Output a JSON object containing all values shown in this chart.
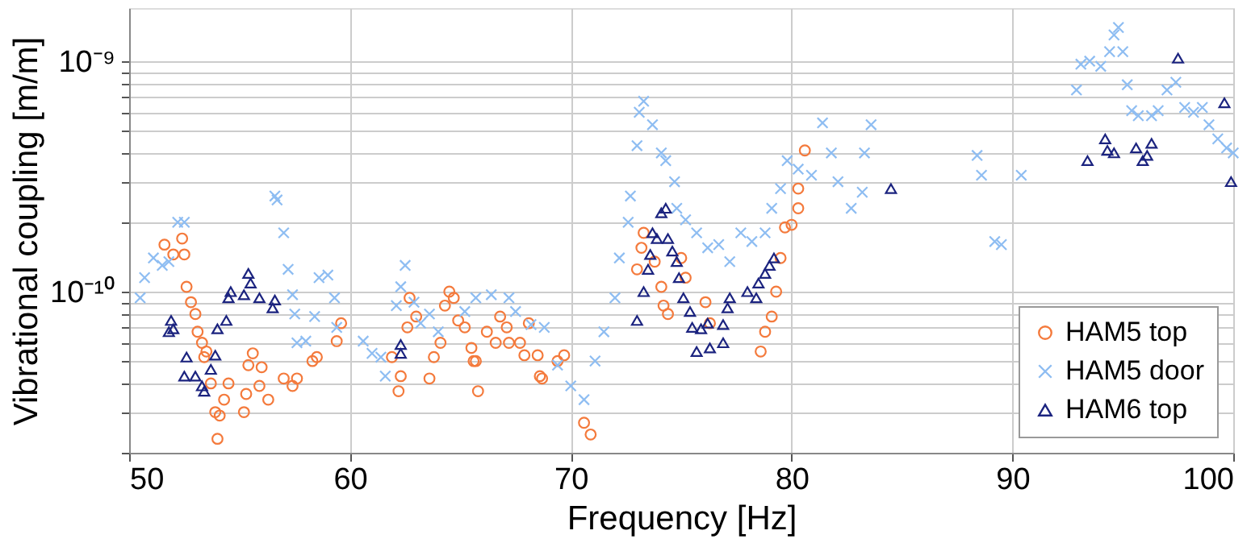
{
  "chart_data": {
    "type": "scatter",
    "xlabel": "Frequency [Hz]",
    "ylabel": "Vibrational coupling [m/m]",
    "log": "y",
    "grid": true,
    "legend": "bottom right",
    "xlim": [
      50,
      100
    ],
    "xticks": [
      50,
      60,
      70,
      80,
      90,
      100
    ],
    "ylim": [
      2e-11,
      1.7e-09
    ],
    "yticks": [
      {
        "value": 2e-11,
        "label": null
      },
      {
        "value": 3e-11,
        "label": null
      },
      {
        "value": 4e-11,
        "label": null
      },
      {
        "value": 5e-11,
        "label": null
      },
      {
        "value": 6e-11,
        "label": null
      },
      {
        "value": 7e-11,
        "label": null
      },
      {
        "value": 8e-11,
        "label": null
      },
      {
        "value": 9e-11,
        "label": null
      },
      {
        "value": 1e-10,
        "label": "10⁻¹⁰"
      },
      {
        "value": 2e-10,
        "label": null
      },
      {
        "value": 3e-10,
        "label": null
      },
      {
        "value": 4e-10,
        "label": null
      },
      {
        "value": 5e-10,
        "label": null
      },
      {
        "value": 6e-10,
        "label": null
      },
      {
        "value": 7e-10,
        "label": null
      },
      {
        "value": 8e-10,
        "label": null
      },
      {
        "value": 9e-10,
        "label": null
      },
      {
        "value": 1e-09,
        "label": "10⁻⁹"
      }
    ],
    "series": [
      {
        "name": "HAM5 top",
        "color": "#f47a3c",
        "marker": "circle",
        "x": [
          51.6,
          52.0,
          52.4,
          52.5,
          52.6,
          52.8,
          53.0,
          53.1,
          53.3,
          53.4,
          53.5,
          53.7,
          53.9,
          54.0,
          54.1,
          54.3,
          54.5,
          55.2,
          55.3,
          55.4,
          55.6,
          55.9,
          56.0,
          56.3,
          57.0,
          57.4,
          57.6,
          58.3,
          58.5,
          59.4,
          59.6,
          61.9,
          62.2,
          62.3,
          62.6,
          62.7,
          63.0,
          63.6,
          63.8,
          64.1,
          64.3,
          64.5,
          64.7,
          64.9,
          65.2,
          65.5,
          65.6,
          65.7,
          65.8,
          66.2,
          66.6,
          66.8,
          67.1,
          67.2,
          67.7,
          67.9,
          68.1,
          68.5,
          68.6,
          68.7,
          69.4,
          69.7,
          70.6,
          70.9,
          73.0,
          73.2,
          73.3,
          73.8,
          74.1,
          74.2,
          74.4,
          75.0,
          75.2,
          76.1,
          76.3,
          78.6,
          78.8,
          79.1,
          79.3,
          79.5,
          79.7,
          80.0,
          80.3,
          80.3,
          80.6
        ],
        "values": [
          1.6e-10,
          1.45e-10,
          1.7e-10,
          1.45e-10,
          1.05e-10,
          9e-11,
          8e-11,
          6.7e-11,
          6e-11,
          5.2e-11,
          5.5e-11,
          4e-11,
          3e-11,
          2.3e-11,
          2.9e-11,
          3.4e-11,
          4e-11,
          3e-11,
          3.6e-11,
          4.8e-11,
          5.4e-11,
          3.9e-11,
          4.7e-11,
          3.4e-11,
          4.2e-11,
          3.9e-11,
          4.2e-11,
          5e-11,
          5.2e-11,
          6.1e-11,
          7.3e-11,
          5.2e-11,
          3.7e-11,
          4.3e-11,
          7e-11,
          9.4e-11,
          7.8e-11,
          4.2e-11,
          5.2e-11,
          6e-11,
          8.7e-11,
          1e-10,
          9.4e-11,
          7.5e-11,
          7e-11,
          5.7e-11,
          5e-11,
          5e-11,
          3.7e-11,
          6.7e-11,
          6e-11,
          7.8e-11,
          7e-11,
          6e-11,
          6e-11,
          5.3e-11,
          7.3e-11,
          5.3e-11,
          4.3e-11,
          4.2e-11,
          5e-11,
          5.3e-11,
          2.7e-11,
          2.4e-11,
          1.25e-10,
          1.55e-10,
          1.8e-10,
          1.35e-10,
          1.05e-10,
          8.7e-11,
          8e-11,
          1.4e-10,
          1.15e-10,
          9e-11,
          7.3e-11,
          5.5e-11,
          6.7e-11,
          7.8e-11,
          1e-10,
          1.4e-10,
          1.9e-10,
          1.95e-10,
          2.3e-10,
          2.8e-10,
          4.1e-10
        ]
      },
      {
        "name": "HAM5 door",
        "color": "#8ebdf2",
        "marker": "cross",
        "x": [
          50.5,
          50.7,
          51.1,
          51.5,
          51.8,
          52.2,
          52.5,
          56.6,
          56.7,
          57.0,
          57.2,
          57.4,
          57.5,
          57.6,
          58.0,
          58.4,
          58.6,
          59.0,
          59.3,
          59.4,
          60.6,
          61.0,
          61.4,
          61.6,
          62.1,
          62.3,
          62.5,
          62.9,
          63.2,
          63.6,
          64.0,
          65.2,
          65.7,
          66.4,
          67.2,
          67.5,
          68.2,
          68.8,
          69.4,
          70.0,
          70.6,
          71.1,
          71.5,
          72.0,
          72.2,
          72.6,
          72.7,
          73.0,
          73.1,
          73.3,
          73.7,
          74.1,
          74.3,
          74.7,
          74.8,
          75.2,
          75.7,
          76.2,
          76.7,
          77.2,
          77.7,
          78.2,
          78.8,
          79.1,
          79.5,
          79.8,
          80.3,
          80.9,
          81.4,
          81.8,
          82.1,
          82.7,
          83.2,
          83.3,
          83.6,
          88.4,
          88.6,
          89.2,
          89.5,
          90.4,
          92.9,
          93.1,
          93.5,
          94.0,
          94.4,
          94.6,
          94.8,
          95.0,
          95.2,
          95.4,
          95.7,
          96.3,
          96.6,
          97.0,
          97.4,
          97.8,
          98.2,
          98.6,
          98.9,
          99.3,
          99.7,
          100.0
        ],
        "values": [
          9.4e-11,
          1.15e-10,
          1.4e-10,
          1.3e-10,
          1.35e-10,
          2e-10,
          2e-10,
          2.6e-10,
          2.5e-10,
          1.8e-10,
          1.25e-10,
          9.7e-11,
          8e-11,
          6e-11,
          6.1e-11,
          7.8e-11,
          1.15e-10,
          1.18e-10,
          9.4e-11,
          7e-11,
          6.1e-11,
          5.4e-11,
          5.2e-11,
          4.3e-11,
          8.7e-11,
          1.05e-10,
          1.3e-10,
          9e-11,
          7.3e-11,
          8e-11,
          6.7e-11,
          8.2e-11,
          9.4e-11,
          9.7e-11,
          9.4e-11,
          8.2e-11,
          7.2e-11,
          7e-11,
          4.8e-11,
          3.9e-11,
          3.4e-11,
          5e-11,
          6.7e-11,
          9.4e-11,
          1.4e-10,
          2e-10,
          2.6e-10,
          4.3e-10,
          6e-10,
          6.7e-10,
          5.3e-10,
          4e-10,
          3.7e-10,
          3e-10,
          2.3e-10,
          2.05e-10,
          1.8e-10,
          1.55e-10,
          1.6e-10,
          1.35e-10,
          1.8e-10,
          1.65e-10,
          1.8e-10,
          2.3e-10,
          2.8e-10,
          3.7e-10,
          3.4e-10,
          3.2e-10,
          5.4e-10,
          4e-10,
          3e-10,
          2.3e-10,
          2.7e-10,
          4e-10,
          5.3e-10,
          3.9e-10,
          3.2e-10,
          1.65e-10,
          1.6e-10,
          3.2e-10,
          7.5e-10,
          9.7e-10,
          1e-09,
          9.5e-10,
          1.1e-09,
          1.3e-09,
          1.4e-09,
          1.1e-09,
          7.9e-10,
          6.1e-10,
          5.8e-10,
          5.8e-10,
          6.1e-10,
          7.5e-10,
          8.1e-10,
          6.3e-10,
          6e-10,
          6.3e-10,
          5.3e-10,
          4.6e-10,
          4.2e-10,
          4e-10
        ]
      },
      {
        "name": "HAM6 top",
        "color": "#1b237f",
        "marker": "triangle",
        "x": [
          51.8,
          51.9,
          52.0,
          52.5,
          52.6,
          53.0,
          53.3,
          53.4,
          53.7,
          53.9,
          54.0,
          54.4,
          54.5,
          54.6,
          55.2,
          55.4,
          55.5,
          55.9,
          56.5,
          56.6,
          62.3,
          62.3,
          73.0,
          73.3,
          73.5,
          73.6,
          73.7,
          73.9,
          74.1,
          74.3,
          74.4,
          74.6,
          74.8,
          74.9,
          75.1,
          75.4,
          75.5,
          75.7,
          75.9,
          76.2,
          76.3,
          76.9,
          76.9,
          77.1,
          77.2,
          78.0,
          78.4,
          78.5,
          78.8,
          79.0,
          79.2,
          84.5,
          93.4,
          94.2,
          94.3,
          94.6,
          95.6,
          95.9,
          96.1,
          96.3,
          97.5,
          99.6,
          99.9
        ],
        "values": [
          6.7e-11,
          7.5e-11,
          6.9e-11,
          4.3e-11,
          5.2e-11,
          4.3e-11,
          3.9e-11,
          3.7e-11,
          4.6e-11,
          5.3e-11,
          6.9e-11,
          7.5e-11,
          9.4e-11,
          1e-10,
          9.7e-11,
          1.2e-10,
          1.09e-10,
          9.4e-11,
          8.5e-11,
          9.2e-11,
          5.9e-11,
          5.4e-11,
          7.5e-11,
          1e-10,
          1.25e-10,
          1.45e-10,
          1.8e-10,
          1.7e-10,
          2.2e-10,
          2.3e-10,
          1.7e-10,
          1.5e-10,
          1.35e-10,
          1.15e-10,
          9.4e-11,
          8.2e-11,
          7e-11,
          5.5e-11,
          6.9e-11,
          7.3e-11,
          5.7e-11,
          6e-11,
          7.2e-11,
          8.5e-11,
          9.4e-11,
          1e-10,
          9.4e-11,
          1.09e-10,
          1.2e-10,
          1.3e-10,
          1.4e-10,
          2.8e-10,
          3.7e-10,
          4.6e-10,
          4.1e-10,
          4e-10,
          4.2e-10,
          3.7e-10,
          3.9e-10,
          4.4e-10,
          1.03e-09,
          6.6e-10,
          3e-10
        ]
      }
    ]
  }
}
